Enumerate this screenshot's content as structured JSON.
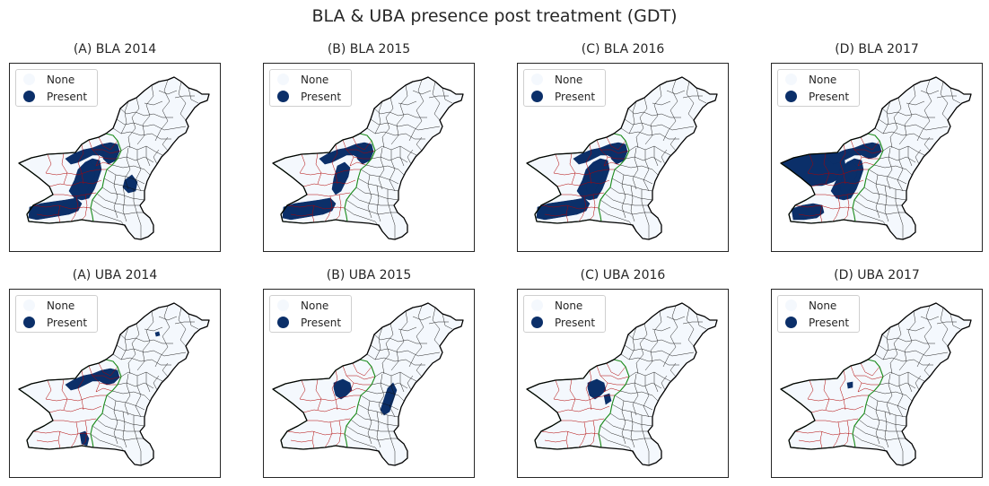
{
  "figure": {
    "title": "BLA & UBA presence post treatment (GDT)"
  },
  "legend": {
    "items": [
      {
        "label": "None",
        "color": "#f4f8fd"
      },
      {
        "label": "Present",
        "color": "#0b2f69"
      }
    ]
  },
  "colors": {
    "district_edge": "#111111",
    "balochistan_district_edge": "#b00000",
    "balochistan_border": "#1a8a1a",
    "country_border": "#000000",
    "background": "#ffffff"
  },
  "panels": [
    {
      "title": "(A) BLA 2014",
      "present_regions": [
        "makran-coast",
        "central-belt",
        "kalat-strip",
        "north-arc",
        "bolan-ne",
        "kachhi"
      ]
    },
    {
      "title": "(B) BLA 2015",
      "present_regions": [
        "makran-coast",
        "kalat-strip",
        "north-arc",
        "bolan-ne"
      ]
    },
    {
      "title": "(C) BLA 2016",
      "present_regions": [
        "makran-coast",
        "central-belt",
        "kalat-strip",
        "north-arc",
        "bolan-ne"
      ]
    },
    {
      "title": "(D) BLA 2017",
      "present_regions": [
        "chagai-kharan",
        "central-belt",
        "north-arc",
        "makran-west",
        "kalat-strip"
      ]
    },
    {
      "title": "(A) UBA 2014",
      "present_regions": [
        "north-arc",
        "makran-tip",
        "punjab-dot"
      ]
    },
    {
      "title": "(B) UBA 2015",
      "present_regions": [
        "quetta-box",
        "sindh-strip"
      ]
    },
    {
      "title": "(C) UBA 2016",
      "present_regions": [
        "quetta-box",
        "bolan-small"
      ]
    },
    {
      "title": "(D) UBA 2017",
      "present_regions": [
        "quetta-dot"
      ]
    }
  ]
}
